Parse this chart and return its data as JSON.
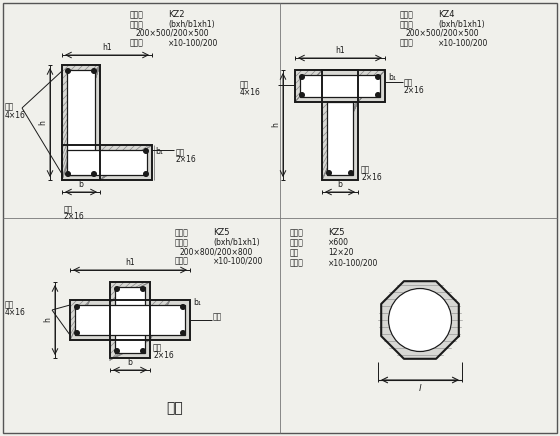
{
  "bg_color": "#f0f0eb",
  "line_color": "#1a1a1a",
  "text_color": "#1a1a1a",
  "hatch_color": "#888888",
  "font_size_text": 6.0,
  "font_size_small": 5.5,
  "font_size_title": 10,
  "kz2_label": "KZ2",
  "kz2_section": "(bxh/b1xh1)",
  "kz2_dims": "200×500/200×500",
  "kz2_stirrup": "×10-100/200",
  "kz4_label": "KZ4",
  "kz4_section": "(bxh/b1xh1)",
  "kz4_dims": "200×500/200×500",
  "kz4_stirrup": "×10-100/200",
  "kz5a_label": "KZ5",
  "kz5a_section": "(bxh/b1xh1)",
  "kz5a_dims": "200×800/200×800",
  "kz5a_stirrup": "×10-100/200",
  "kz5b_label": "KZ5",
  "kz5b_section": "×600",
  "kz5b_rebar": "12×20",
  "kz5b_stirrup": "×10-100/200",
  "label_zhu_bianhao": "柱编号",
  "label_zhu_jiemian": "柱截面",
  "label_zhu_jinshu": "柱箍筋",
  "label_zong_jin": "纵筋",
  "label_jiaojin": "角筋",
  "label_rebar_4_16": "4×16",
  "label_rebar_2_16": "2×16",
  "label_tulie": "图例"
}
